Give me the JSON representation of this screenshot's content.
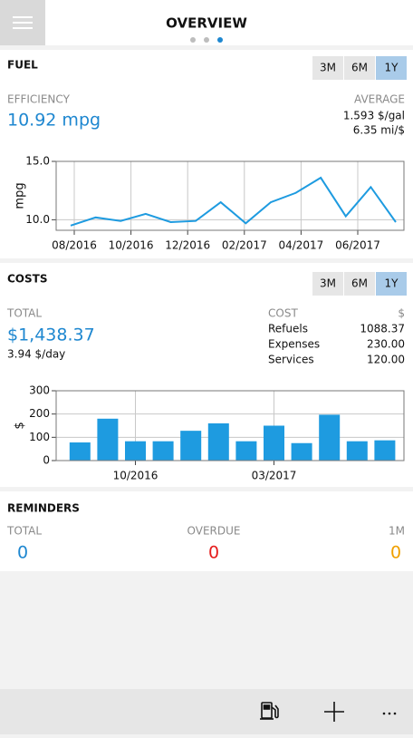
{
  "header": {
    "title": "OVERVIEW",
    "pages": 3,
    "current_page": 2
  },
  "fuel": {
    "title": "FUEL",
    "range_options": [
      "3M",
      "6M",
      "1Y"
    ],
    "selected": 2,
    "efficiency_label": "EFFICIENCY",
    "efficiency": "10.92 mpg",
    "average_label": "AVERAGE",
    "average": [
      "1.593 $/gal",
      "6.35 mi/$"
    ],
    "chart": {
      "type": "line",
      "y_label": "mpg",
      "color": "#1e9be0",
      "values": [
        9.5,
        10.2,
        9.9,
        10.5,
        9.8,
        9.9,
        11.5,
        9.7,
        11.5,
        12.3,
        13.6,
        10.3,
        12.8,
        9.8
      ],
      "xticks": [
        "08/2016",
        "10/2016",
        "12/2016",
        "02/2017",
        "04/2017",
        "06/2017"
      ],
      "ylim": [
        9.1,
        15
      ],
      "yticks": [
        {
          "value": 15,
          "label": "15.0"
        },
        {
          "value": 10,
          "label": "10.0"
        }
      ],
      "grid": true
    }
  },
  "costs": {
    "title": "COSTS",
    "range_options": [
      "3M",
      "6M",
      "1Y"
    ],
    "selected": 2,
    "total_label": "TOTAL",
    "total": "$1,438.37",
    "per_day": "3.94 $/day",
    "breakdown_header": [
      "COST",
      "$"
    ],
    "breakdown": [
      [
        "Refuels",
        "1088.37"
      ],
      [
        "Expenses",
        "230.00"
      ],
      [
        "Services",
        "120.00"
      ]
    ],
    "chart": {
      "type": "bar",
      "y_label": "$",
      "color": "#1e9be0",
      "categories": [
        null,
        null,
        "10/2016",
        null,
        null,
        null,
        null,
        "03/2017",
        null,
        null,
        null,
        null
      ],
      "values": [
        78,
        180,
        83,
        83,
        128,
        160,
        83,
        150,
        75,
        197,
        83,
        87
      ],
      "ylim": [
        0,
        300
      ],
      "yticks": [
        0,
        100,
        200,
        300
      ],
      "grid": true
    }
  },
  "reminders": {
    "title": "REMINDERS",
    "items": [
      {
        "label": "TOTAL",
        "value": "0",
        "color": "#1e87d0"
      },
      {
        "label": "OVERDUE",
        "value": "0",
        "color": "#e51c1c"
      },
      {
        "label": "1M",
        "value": "0",
        "color": "#f0a000"
      }
    ]
  }
}
